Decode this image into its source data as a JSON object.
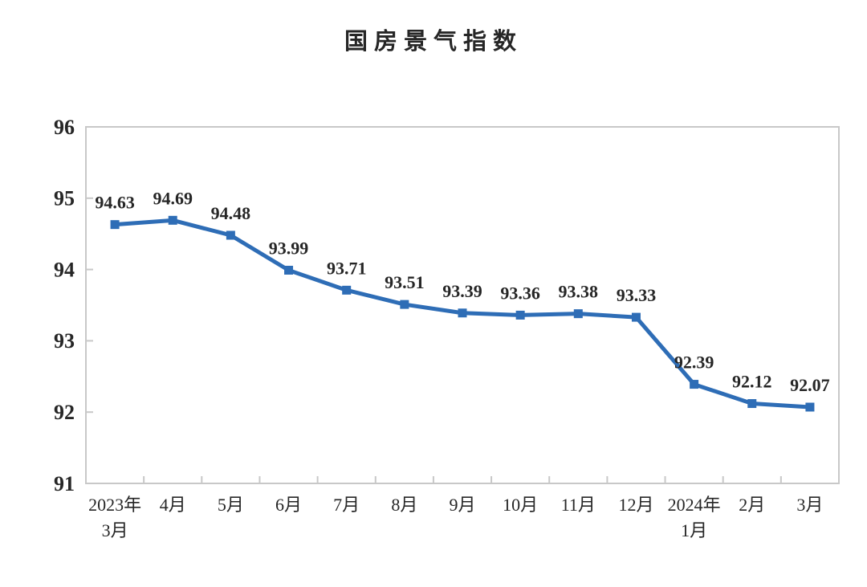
{
  "chart_data": {
    "type": "line",
    "title": "国房景气指数",
    "categories": [
      "2023年\n3月",
      "4月",
      "5月",
      "6月",
      "7月",
      "8月",
      "9月",
      "10月",
      "11月",
      "12月",
      "2024年\n1月",
      "2月",
      "3月"
    ],
    "series": [
      {
        "name": "国房景气指数",
        "values": [
          94.63,
          94.69,
          94.48,
          93.99,
          93.71,
          93.51,
          93.39,
          93.36,
          93.38,
          93.33,
          92.39,
          92.12,
          92.07
        ]
      }
    ],
    "data_labels": [
      "94.63",
      "94.69",
      "94.48",
      "93.99",
      "93.71",
      "93.51",
      "93.39",
      "93.36",
      "93.38",
      "93.33",
      "92.39",
      "92.12",
      "92.07"
    ],
    "ylim": [
      91,
      96
    ],
    "yticks": [
      91,
      92,
      93,
      94,
      95,
      96
    ],
    "xlabel": "",
    "ylabel": "",
    "grid": false,
    "legend": false,
    "marker": "square",
    "colors": {
      "line": "#2E6DB6",
      "marker": "#2E6DB6",
      "axis": "#C8C8C8",
      "text": "#262626",
      "background": "#FFFFFF"
    }
  }
}
